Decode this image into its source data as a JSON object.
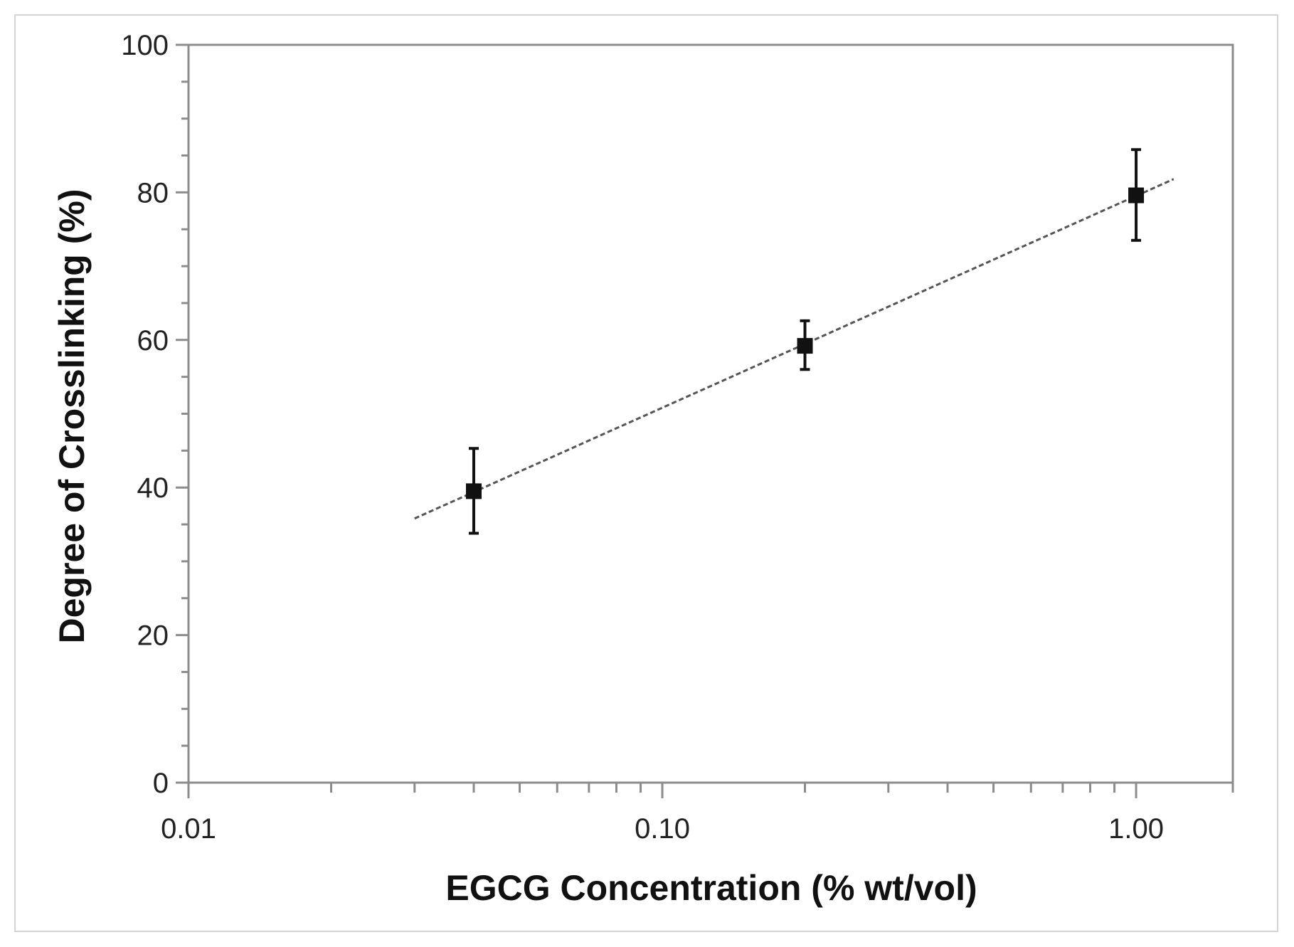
{
  "chart_data": {
    "type": "scatter",
    "title": "",
    "xlabel": "EGCG Concentration (% wt/vol)",
    "ylabel": "Degree of Crosslinking (%)",
    "x_scale": "log",
    "xlim": [
      0.01,
      1.6
    ],
    "ylim": [
      0,
      100
    ],
    "x_ticks": [
      {
        "value": 0.01,
        "label": "0.01"
      },
      {
        "value": 0.1,
        "label": "0.10"
      },
      {
        "value": 1.0,
        "label": "1.00"
      }
    ],
    "y_ticks": [
      {
        "value": 0,
        "label": "0"
      },
      {
        "value": 20,
        "label": "20"
      },
      {
        "value": 40,
        "label": "40"
      },
      {
        "value": 60,
        "label": "60"
      },
      {
        "value": 80,
        "label": "80"
      },
      {
        "value": 100,
        "label": "100"
      }
    ],
    "grid": false,
    "legend": "none",
    "points": [
      {
        "x": 0.04,
        "y": 39.5,
        "err_low": 33.8,
        "err_high": 45.3
      },
      {
        "x": 0.2,
        "y": 59.2,
        "err_low": 56.0,
        "err_high": 62.6
      },
      {
        "x": 1.0,
        "y": 79.6,
        "err_low": 73.5,
        "err_high": 85.8
      }
    ],
    "trendline": {
      "style": "dashed",
      "x_start": 0.03,
      "y_start": 35.8,
      "x_end": 1.2,
      "y_end": 81.8
    },
    "colors": {
      "marker": "#111111",
      "axis": "#8c8c8c",
      "trendline": "#555555"
    }
  }
}
